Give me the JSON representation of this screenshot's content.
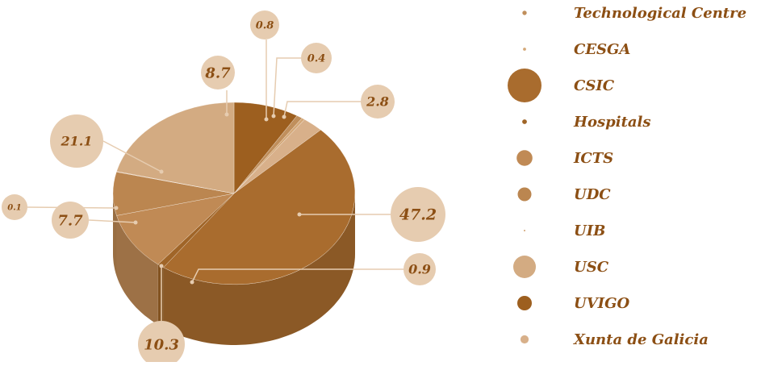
{
  "chart_data": {
    "type": "pie",
    "categories": [
      "Technological Centre",
      "CESGA",
      "CSIC",
      "Hospitals",
      "ICTS",
      "UDC",
      "UIB",
      "USC",
      "UVIGO",
      "Xunta de Galicia"
    ],
    "values": [
      0.8,
      0.4,
      47.2,
      0.9,
      10.3,
      7.7,
      0.1,
      21.1,
      8.7,
      2.8
    ],
    "value_labels": [
      "0.8",
      "0.4",
      "47.2",
      "0.9",
      "10.3",
      "7.7",
      "0.1",
      "21.1",
      "8.7",
      "2.8"
    ],
    "colors": [
      "#c08f5c",
      "#d4a878",
      "#a96c2e",
      "#a06528",
      "#c08a55",
      "#bb8650",
      "#d0a070",
      "#d3ab82",
      "#9d5f1f",
      "#d8b08a"
    ],
    "bubble_color": "#e6ccb0",
    "legend_text_color": "#8c4f14",
    "legend_position": "right"
  }
}
